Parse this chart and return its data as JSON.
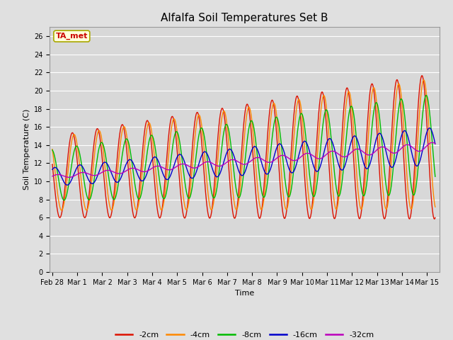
{
  "title": "Alfalfa Soil Temperatures Set B",
  "xlabel": "Time",
  "ylabel": "Soil Temperature (C)",
  "ylim": [
    0,
    27
  ],
  "yticks": [
    0,
    2,
    4,
    6,
    8,
    10,
    12,
    14,
    16,
    18,
    20,
    22,
    24,
    26
  ],
  "annotation_text": "TA_met",
  "annotation_color": "#cc0000",
  "annotation_bg": "#ffffdd",
  "annotation_border": "#aaa800",
  "line_colors": {
    "-2cm": "#dd1100",
    "-4cm": "#ff8800",
    "-8cm": "#00bb00",
    "-16cm": "#0000cc",
    "-32cm": "#bb00bb"
  },
  "legend_labels": [
    "-2cm",
    "-4cm",
    "-8cm",
    "-16cm",
    "-32cm"
  ],
  "bg_color": "#e0e0e0",
  "plot_bg_color": "#d8d8d8",
  "grid_color": "#ffffff",
  "title_fontsize": 11,
  "axis_fontsize": 8,
  "tick_fontsize": 7,
  "xlim_left": -0.1,
  "xlim_right": 15.5
}
